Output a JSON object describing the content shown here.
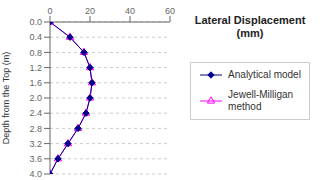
{
  "chart_data": {
    "type": "line",
    "title": "Lateral Displacement\n(mm)",
    "y_label": "Depth from the Top (m)",
    "x": [
      0,
      10,
      17,
      20,
      21,
      20,
      18,
      14,
      9,
      4,
      0
    ],
    "series": [
      {
        "name": "Analytical model",
        "color": "#00008B",
        "marker": "diamond",
        "line_style": "solid",
        "values": [
          0,
          0.4,
          0.8,
          1.2,
          1.6,
          2.0,
          2.4,
          2.8,
          3.2,
          3.6,
          4.0
        ]
      },
      {
        "name": "Jewell-Milligan\nmethod",
        "color": "#FF00FF",
        "marker": "triangle",
        "line_style": "solid",
        "values": [
          0,
          0.4,
          0.8,
          1.2,
          1.6,
          2.0,
          2.4,
          2.8,
          3.2,
          3.6,
          4.0
        ]
      }
    ],
    "xlim": [
      0,
      60
    ],
    "ylim": [
      4,
      0
    ],
    "xticks": [
      0,
      20,
      40,
      60
    ],
    "yticks": [
      {
        "value": 0,
        "label": "0.0"
      },
      0.4,
      0.8,
      1.2,
      1.6,
      {
        "value": 2.0,
        "label": "2.0"
      },
      2.4,
      2.8,
      3.2,
      3.6,
      {
        "value": 4.0,
        "label": "4.0"
      }
    ],
    "grid": "y",
    "legend": "right"
  }
}
